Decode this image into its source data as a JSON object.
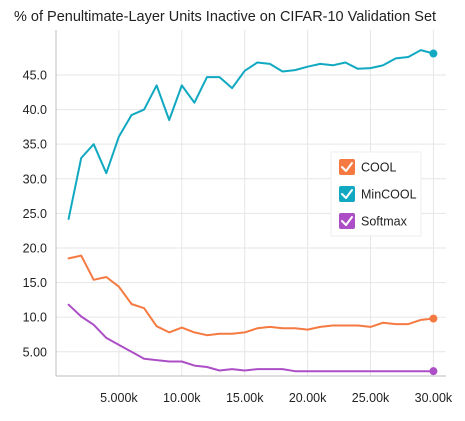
{
  "chart_data": {
    "type": "line",
    "title": "% of Penultimate-Layer Units Inactive on CIFAR-10 Validation Set",
    "xlabel": "",
    "ylabel": "",
    "xlim": [
      0,
      31000
    ],
    "ylim": [
      1.5,
      51.5
    ],
    "x_ticks": [
      5000,
      10000,
      15000,
      20000,
      25000,
      30000
    ],
    "x_tick_labels": [
      "5.000k",
      "10.00k",
      "15.00k",
      "20.00k",
      "25.00k",
      "30.00k"
    ],
    "y_ticks": [
      5,
      10,
      15,
      20,
      25,
      30,
      35,
      40,
      45
    ],
    "y_tick_labels": [
      "5.00",
      "10.0",
      "15.0",
      "20.0",
      "25.0",
      "30.0",
      "35.0",
      "40.0",
      "45.0"
    ],
    "grid": true,
    "legend_position": "right",
    "x": [
      1000,
      2000,
      3000,
      4000,
      5000,
      6000,
      7000,
      8000,
      9000,
      10000,
      11000,
      12000,
      13000,
      14000,
      15000,
      16000,
      17000,
      18000,
      19000,
      20000,
      21000,
      22000,
      23000,
      24000,
      25000,
      26000,
      27000,
      28000,
      29000,
      30000
    ],
    "series": [
      {
        "name": "COOL",
        "color": "#f57a42",
        "values": [
          18.5,
          18.9,
          15.4,
          15.8,
          14.4,
          11.9,
          11.3,
          8.7,
          7.8,
          8.5,
          7.8,
          7.4,
          7.6,
          7.6,
          7.8,
          8.4,
          8.6,
          8.4,
          8.4,
          8.2,
          8.6,
          8.8,
          8.8,
          8.8,
          8.6,
          9.2,
          9.0,
          9.0,
          9.6,
          9.8
        ]
      },
      {
        "name": "MinCOOL",
        "color": "#11a9c2",
        "values": [
          24.2,
          33.0,
          35.0,
          30.8,
          36.1,
          39.2,
          40.0,
          43.5,
          38.5,
          43.5,
          41.0,
          44.7,
          44.7,
          43.1,
          45.6,
          46.8,
          46.6,
          45.5,
          45.7,
          46.2,
          46.6,
          46.4,
          46.8,
          45.9,
          46.0,
          46.4,
          47.4,
          47.6,
          48.6,
          48.1
        ]
      },
      {
        "name": "Softmax",
        "color": "#ac4fc6",
        "values": [
          11.8,
          10.1,
          8.9,
          7.0,
          6.0,
          5.0,
          4.0,
          3.8,
          3.6,
          3.6,
          3.0,
          2.8,
          2.3,
          2.5,
          2.3,
          2.5,
          2.5,
          2.5,
          2.2,
          2.2,
          2.2,
          2.2,
          2.2,
          2.2,
          2.2,
          2.2,
          2.2,
          2.2,
          2.2,
          2.2
        ]
      }
    ]
  }
}
